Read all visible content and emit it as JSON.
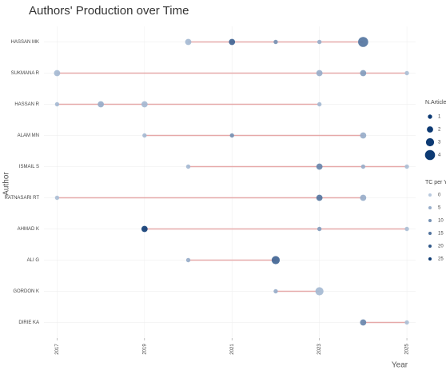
{
  "chart_data": {
    "type": "timeline",
    "title": "Authors' Production over Time",
    "x_label": "Year",
    "y_label": "Author",
    "xlim": [
      2016.7,
      2025.2
    ],
    "xticks": [
      2017,
      2019,
      2021,
      2023,
      2025
    ],
    "grid": true,
    "line_color": "#e6a9a9",
    "color_range": [
      "#b8c9de",
      "#0d3a73"
    ],
    "authors": [
      {
        "name": "HASSAN MK",
        "years": [
          2020,
          2021,
          2022,
          2023,
          2024
        ],
        "articles": [
          2,
          2,
          1,
          1,
          4
        ],
        "tc_per_year": [
          3,
          18,
          10,
          5,
          15
        ]
      },
      {
        "name": "SUKMANA R",
        "years": [
          2017,
          2023,
          2024,
          2025
        ],
        "articles": [
          2,
          2,
          2,
          1
        ],
        "tc_per_year": [
          3,
          5,
          8,
          2
        ]
      },
      {
        "name": "HASSAN R",
        "years": [
          2017,
          2018,
          2019,
          2023
        ],
        "articles": [
          1,
          2,
          2,
          1
        ],
        "tc_per_year": [
          3,
          5,
          3,
          3
        ]
      },
      {
        "name": "ALAM MN",
        "years": [
          2019,
          2021,
          2024
        ],
        "articles": [
          1,
          1,
          2
        ],
        "tc_per_year": [
          3,
          10,
          5
        ]
      },
      {
        "name": "ISMAIL S",
        "years": [
          2020,
          2023,
          2024,
          2025
        ],
        "articles": [
          1,
          2,
          1,
          1
        ],
        "tc_per_year": [
          3,
          12,
          5,
          2
        ]
      },
      {
        "name": "RATNASARI RT",
        "years": [
          2017,
          2023,
          2024
        ],
        "articles": [
          1,
          2,
          2
        ],
        "tc_per_year": [
          2,
          15,
          5
        ]
      },
      {
        "name": "AHMAD K",
        "years": [
          2019,
          2023,
          2025
        ],
        "articles": [
          2,
          1,
          1
        ],
        "tc_per_year": [
          25,
          8,
          2
        ]
      },
      {
        "name": "ALI G",
        "years": [
          2020,
          2022
        ],
        "articles": [
          1,
          3
        ],
        "tc_per_year": [
          5,
          18
        ]
      },
      {
        "name": "GORDON K",
        "years": [
          2022,
          2023
        ],
        "articles": [
          1,
          3
        ],
        "tc_per_year": [
          5,
          3
        ]
      },
      {
        "name": "DIRIE KA",
        "years": [
          2024,
          2025
        ],
        "articles": [
          2,
          1
        ],
        "tc_per_year": [
          12,
          2
        ]
      }
    ],
    "size_legend": {
      "title": "N.Articles",
      "values": [
        1,
        2,
        3,
        4
      ]
    },
    "color_legend": {
      "title": "TC per Year",
      "values": [
        0,
        5,
        10,
        15,
        20,
        25
      ]
    }
  }
}
